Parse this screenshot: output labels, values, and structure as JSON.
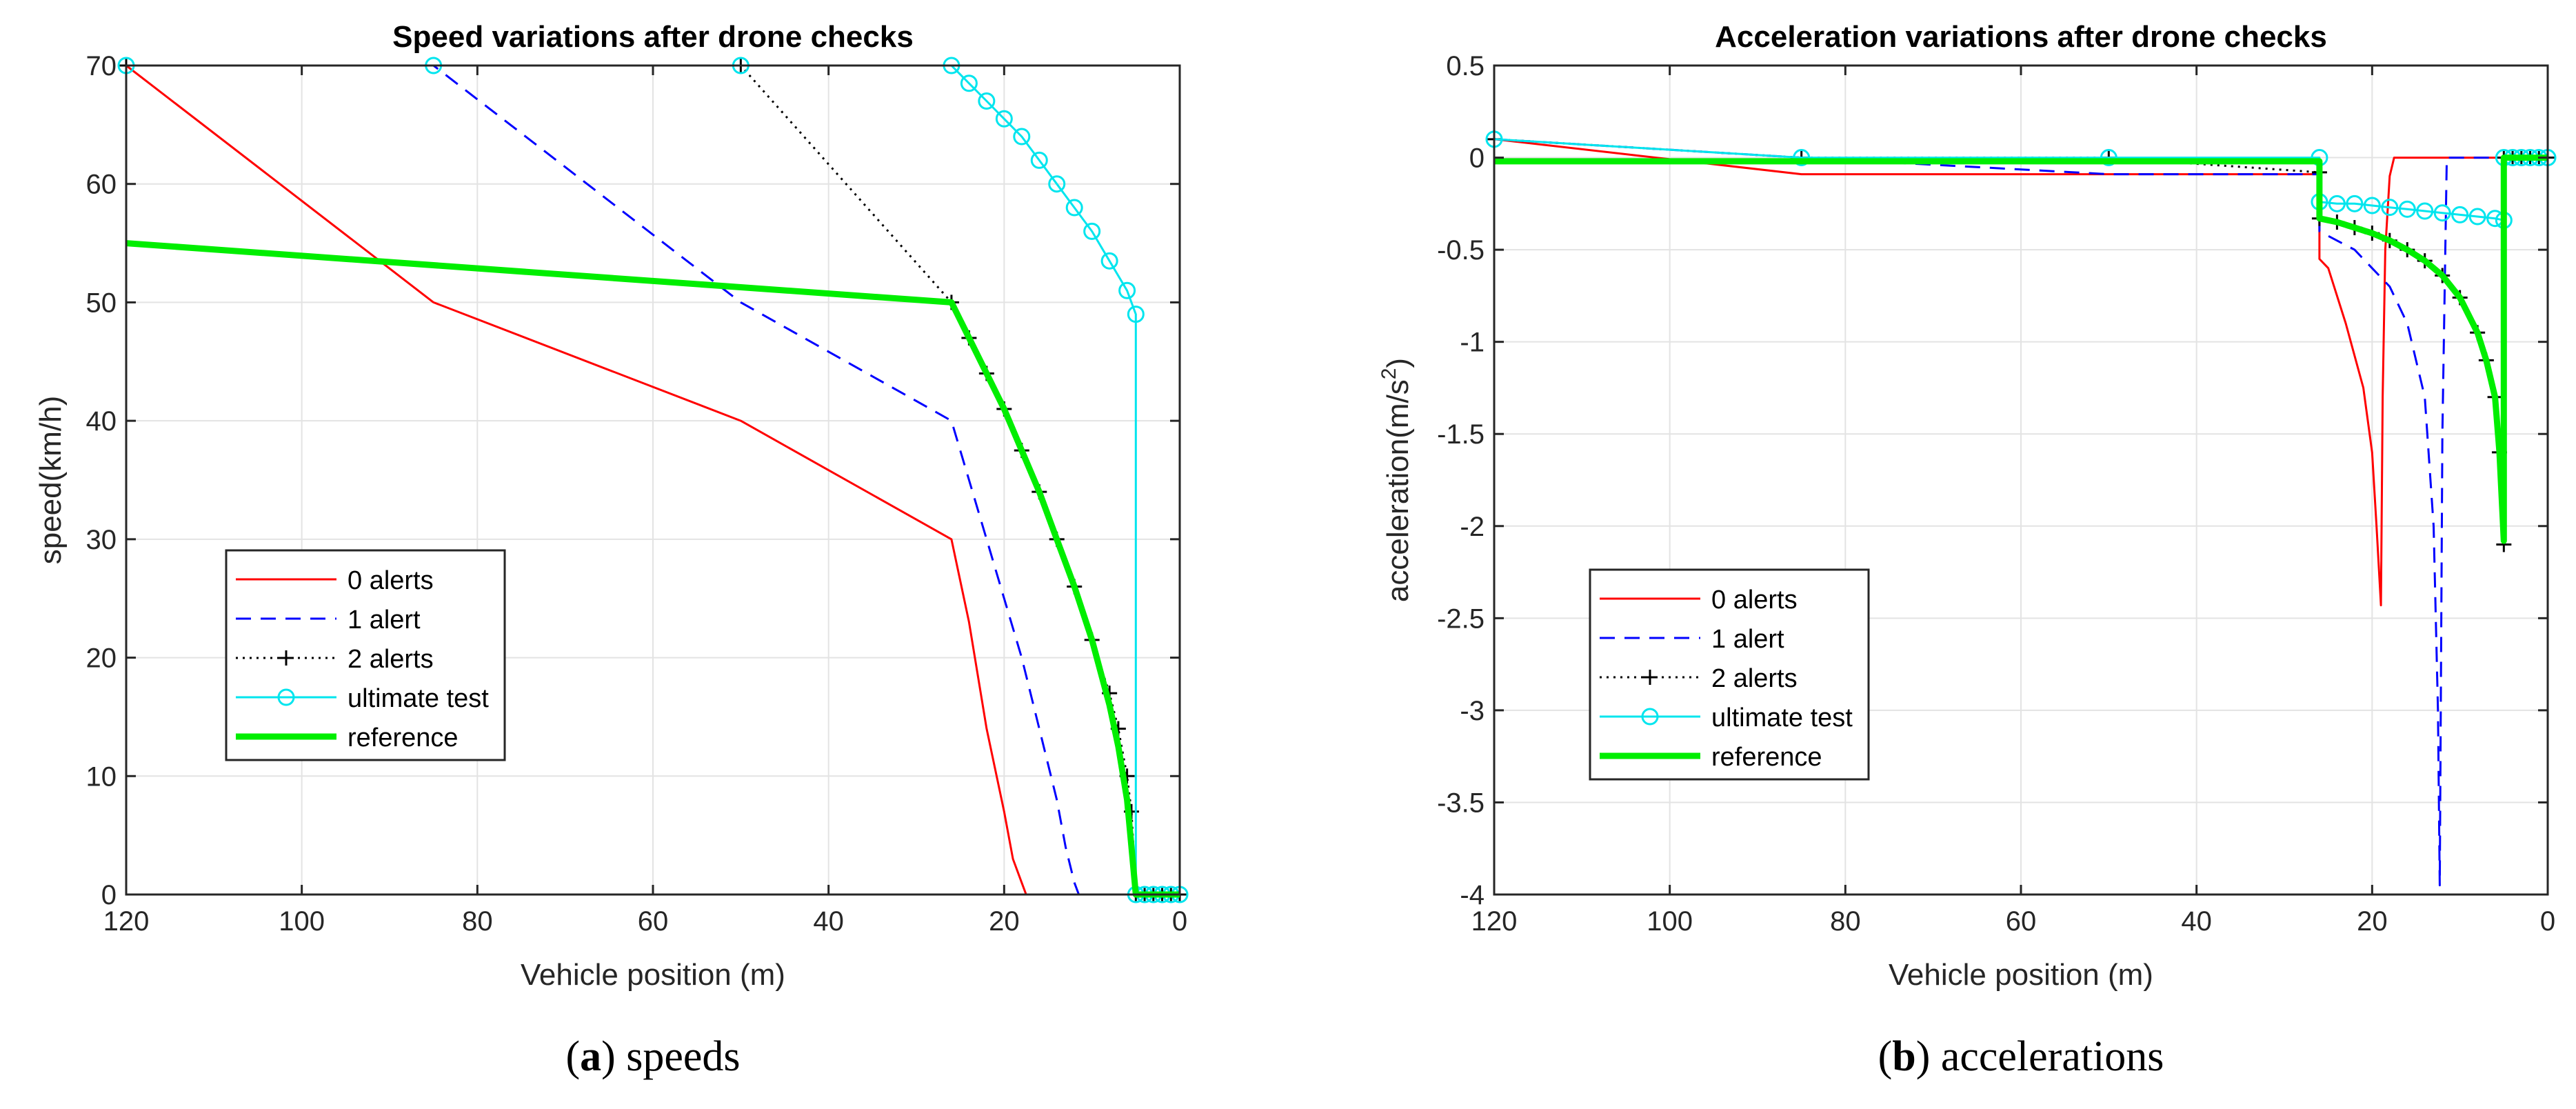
{
  "chart_data": [
    {
      "type": "line",
      "title": "Speed variations after drone checks",
      "xlabel": "Vehicle position (m)",
      "ylabel": "speed(km/h)",
      "xlim": [
        120,
        0
      ],
      "ylim": [
        0,
        70
      ],
      "xticks": [
        120,
        100,
        80,
        60,
        40,
        20,
        0
      ],
      "yticks": [
        0,
        10,
        20,
        30,
        40,
        50,
        60,
        70
      ],
      "grid": true,
      "legend_position": "lower-left",
      "caption_letter": "a",
      "caption_text": " speeds",
      "series": [
        {
          "name": "0 alerts",
          "color": "#ff0000",
          "style": "solid",
          "marker": "none",
          "x": [
            120,
            85,
            50,
            26,
            24,
            22,
            20,
            19,
            18,
            17.5,
            17.5,
            0
          ],
          "y": [
            70,
            50,
            40,
            30,
            23,
            14,
            7,
            3,
            1,
            0,
            0,
            0
          ]
        },
        {
          "name": "1 alert",
          "color": "#0000ff",
          "style": "dashed",
          "marker": "none",
          "x": [
            120,
            85,
            50,
            26,
            24,
            22,
            20,
            18,
            16,
            14,
            13,
            12,
            11.5,
            0
          ],
          "y": [
            70,
            70,
            50,
            40,
            35,
            30,
            25,
            20,
            14,
            8,
            4,
            1,
            0,
            0
          ]
        },
        {
          "name": "2 alerts",
          "color": "#000000",
          "style": "dotted",
          "marker": "plus",
          "x": [
            120,
            50,
            26,
            24,
            22,
            20,
            18,
            16,
            14,
            12,
            10,
            8,
            7,
            6,
            5.5,
            5,
            4,
            3,
            2,
            1,
            0
          ],
          "y": [
            70,
            70,
            50,
            47,
            44,
            41,
            37.5,
            34,
            30,
            26,
            21.5,
            17,
            14,
            10,
            7,
            0,
            0,
            0,
            0,
            0,
            0
          ]
        },
        {
          "name": "ultimate test",
          "color": "#00e5ee",
          "style": "solid",
          "marker": "circle",
          "x": [
            120,
            85,
            50,
            26,
            24,
            22,
            20,
            18,
            16,
            14,
            12,
            10,
            8,
            6,
            5,
            5,
            4,
            3,
            2,
            1,
            0
          ],
          "y": [
            70,
            70,
            70,
            70,
            68.5,
            67,
            65.5,
            64,
            62,
            60,
            58,
            56,
            53.5,
            51,
            49,
            0,
            0,
            0,
            0,
            0,
            0
          ]
        },
        {
          "name": "reference",
          "color": "#00ee00",
          "style": "solid",
          "marker": "none",
          "thick": true,
          "x": [
            120,
            26,
            24,
            22,
            20,
            18,
            16,
            14,
            12,
            10,
            8,
            7,
            6,
            5.5,
            5,
            0
          ],
          "y": [
            55,
            50,
            47,
            44,
            41,
            37.5,
            34,
            30,
            26,
            21.5,
            16,
            12.5,
            8,
            4,
            0,
            0
          ]
        }
      ]
    },
    {
      "type": "line",
      "title": "Acceleration variations after drone checks",
      "xlabel": "Vehicle position (m)",
      "ylabel": "acceleration(m/s",
      "ylabel_sup": "2",
      "ylabel_close": ")",
      "xlim": [
        120,
        0
      ],
      "ylim": [
        -4,
        0.5
      ],
      "xticks": [
        120,
        100,
        80,
        60,
        40,
        20,
        0
      ],
      "yticks": [
        -4,
        -3.5,
        -3,
        -2.5,
        -2,
        -1.5,
        -1,
        -0.5,
        0,
        0.5
      ],
      "ytick_labels": [
        "-4",
        "-3.5",
        "-3",
        "-2.5",
        "-2",
        "-1.5",
        "-1",
        "-0.5",
        "0",
        "0.5"
      ],
      "grid": true,
      "legend_position": "lower-left",
      "caption_letter": "b",
      "caption_text": " accelerations",
      "series": [
        {
          "name": "0 alerts",
          "color": "#ff0000",
          "style": "solid",
          "marker": "none",
          "x": [
            120,
            85,
            50,
            26,
            26,
            25,
            23,
            21,
            20,
            19.5,
            19,
            18.8,
            18.5,
            18,
            17.5,
            0
          ],
          "y": [
            0.1,
            -0.09,
            -0.09,
            -0.09,
            -0.55,
            -0.6,
            -0.9,
            -1.25,
            -1.6,
            -2.0,
            -2.43,
            -1.3,
            -0.5,
            -0.1,
            0,
            0
          ]
        },
        {
          "name": "1 alert",
          "color": "#0000ff",
          "style": "dashed",
          "marker": "none",
          "x": [
            120,
            85,
            50,
            26,
            26,
            24,
            22,
            20,
            18,
            16,
            14,
            13,
            12.5,
            12.3,
            12,
            11.5,
            0
          ],
          "y": [
            0.1,
            0,
            -0.09,
            -0.09,
            -0.4,
            -0.45,
            -0.5,
            -0.6,
            -0.7,
            -0.9,
            -1.3,
            -2.0,
            -3.0,
            -3.95,
            -1.5,
            0,
            0
          ]
        },
        {
          "name": "2 alerts",
          "color": "#000000",
          "style": "dotted",
          "marker": "plus",
          "x": [
            120,
            85,
            50,
            26,
            26,
            24,
            22,
            20,
            18,
            16,
            14,
            12,
            10,
            8,
            7,
            6,
            5.5,
            5,
            5,
            4,
            3,
            2,
            1,
            0
          ],
          "y": [
            0.1,
            0,
            0,
            -0.08,
            -0.33,
            -0.35,
            -0.38,
            -0.41,
            -0.45,
            -0.5,
            -0.56,
            -0.64,
            -0.76,
            -0.95,
            -1.1,
            -1.3,
            -1.6,
            -2.1,
            0,
            0,
            0,
            0,
            0,
            0
          ]
        },
        {
          "name": "ultimate test",
          "color": "#00e5ee",
          "style": "solid",
          "marker": "circle",
          "x": [
            120,
            85,
            50,
            26,
            26,
            24,
            22,
            20,
            18,
            16,
            14,
            12,
            10,
            8,
            6,
            5,
            5,
            4,
            3,
            2,
            1,
            0
          ],
          "y": [
            0.1,
            0,
            0,
            0,
            -0.24,
            -0.25,
            -0.25,
            -0.26,
            -0.27,
            -0.28,
            -0.29,
            -0.3,
            -0.31,
            -0.32,
            -0.33,
            -0.34,
            0,
            0,
            0,
            0,
            0,
            0
          ]
        },
        {
          "name": "reference",
          "color": "#00ee00",
          "style": "solid",
          "marker": "none",
          "thick": true,
          "x": [
            120,
            26,
            26,
            24,
            22,
            20,
            18,
            16,
            14,
            12,
            10,
            8,
            7,
            6,
            5.5,
            5,
            5,
            4,
            0
          ],
          "y": [
            -0.02,
            -0.02,
            -0.33,
            -0.35,
            -0.38,
            -0.41,
            -0.45,
            -0.5,
            -0.56,
            -0.64,
            -0.76,
            -0.95,
            -1.1,
            -1.3,
            -1.6,
            -2.08,
            0,
            0,
            0
          ]
        }
      ]
    }
  ]
}
